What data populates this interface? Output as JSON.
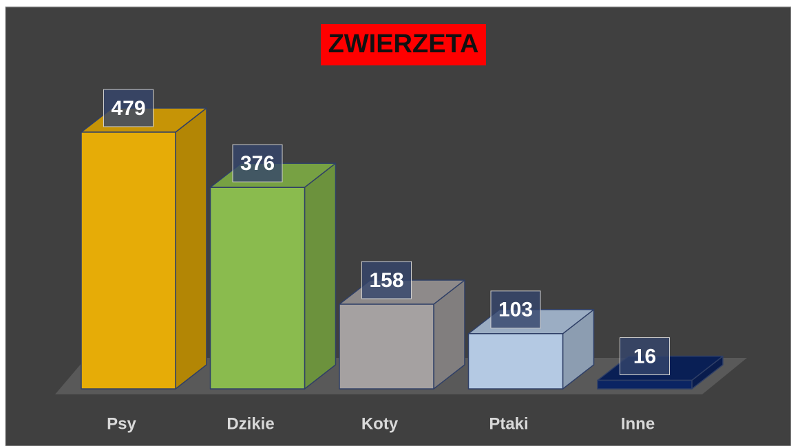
{
  "chart_data": {
    "type": "bar3d",
    "title": "ZWIERZETA",
    "categories": [
      "Psy",
      "Dzikie",
      "Koty",
      "Ptaki",
      "Inne"
    ],
    "values": [
      479,
      376,
      158,
      103,
      16
    ],
    "colors": [
      "#e6ac07",
      "#8abb4e",
      "#a5a1a1",
      "#b4c9e3",
      "#0b2463"
    ]
  }
}
